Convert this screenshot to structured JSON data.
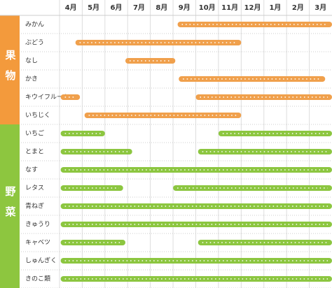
{
  "months": [
    "4月",
    "5月",
    "6月",
    "7月",
    "8月",
    "9月",
    "10月",
    "11月",
    "12月",
    "1月",
    "2月",
    "3月"
  ],
  "groups": [
    {
      "label": "果物",
      "color": "#f39a3c",
      "bar_color": "#f0a04c",
      "items": [
        {
          "name": "みかん",
          "spans": [
            [
              5.2,
              12
            ]
          ]
        },
        {
          "name": "ぶどう",
          "spans": [
            [
              0.7,
              8.0
            ]
          ]
        },
        {
          "name": "なし",
          "spans": [
            [
              2.9,
              5.1
            ]
          ]
        },
        {
          "name": "かき",
          "spans": [
            [
              5.25,
              11.7
            ]
          ]
        },
        {
          "name": "キウイフルーツ",
          "spans": [
            [
              0.05,
              0.9
            ],
            [
              6.0,
              12
            ]
          ]
        },
        {
          "name": "いちじく",
          "spans": [
            [
              1.1,
              8.0
            ]
          ]
        }
      ]
    },
    {
      "label": "野菜",
      "color": "#8dc63f",
      "bar_color": "#8cc640",
      "items": [
        {
          "name": "いちご",
          "spans": [
            [
              0.05,
              2.0
            ],
            [
              7.0,
              12
            ]
          ]
        },
        {
          "name": "とまと",
          "spans": [
            [
              0.05,
              3.2
            ],
            [
              6.1,
              12
            ]
          ]
        },
        {
          "name": "なす",
          "spans": [
            [
              0.05,
              12
            ]
          ]
        },
        {
          "name": "レタス",
          "spans": [
            [
              0.05,
              2.8
            ],
            [
              5.0,
              12
            ]
          ]
        },
        {
          "name": "青ねぎ",
          "spans": [
            [
              0.05,
              12
            ]
          ]
        },
        {
          "name": "きゅうり",
          "spans": [
            [
              0.05,
              12
            ]
          ]
        },
        {
          "name": "キャベツ",
          "spans": [
            [
              0.05,
              2.9
            ],
            [
              6.1,
              12
            ]
          ]
        },
        {
          "name": "しゅんぎく",
          "spans": [
            [
              0.05,
              12
            ]
          ]
        },
        {
          "name": "きのこ類",
          "spans": [
            [
              0.05,
              12
            ]
          ]
        }
      ]
    }
  ]
}
